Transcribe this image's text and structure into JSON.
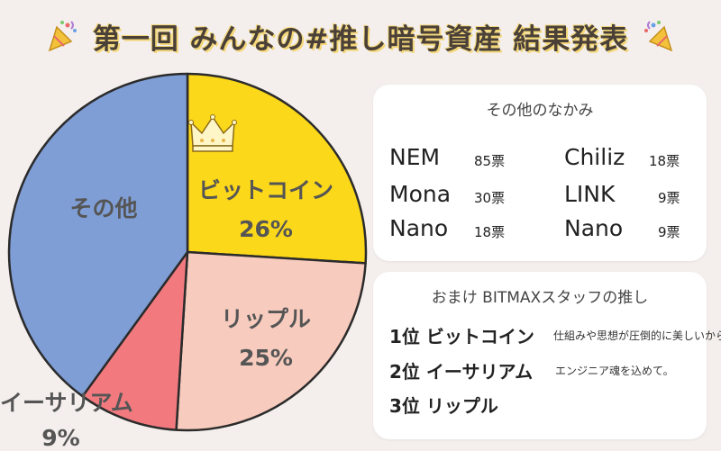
{
  "title": "第一回 みんなの#推し暗号資産 結果発表",
  "chart_data": {
    "type": "pie",
    "title": "第一回 みんなの#推し暗号資産 結果発表",
    "slices": [
      {
        "name": "ビットコイン",
        "value": 26,
        "label": "26%",
        "color": "#fcd81a"
      },
      {
        "name": "リップル",
        "value": 25,
        "label": "25%",
        "color": "#f7cbbd"
      },
      {
        "name": "イーサリアム",
        "value": 9,
        "label": "9%",
        "color": "#f27a7f"
      },
      {
        "name": "その他",
        "value": 40,
        "label": "",
        "color": "#7f9ed6"
      }
    ]
  },
  "others_panel": {
    "title": "その他のなかみ",
    "items": [
      {
        "name": "NEM",
        "votes": "85票"
      },
      {
        "name": "Mona",
        "votes": "30票"
      },
      {
        "name": "Nano",
        "votes": "18票"
      },
      {
        "name": "Chiliz",
        "votes": "18票"
      },
      {
        "name": "LINK",
        "votes": "9票"
      },
      {
        "name": "Nano",
        "votes": "9票"
      }
    ]
  },
  "staff_panel": {
    "title": "おまけ BITMAXスタッフの推し",
    "ranks": [
      {
        "rank": "1位 ビットコイン",
        "note": "仕組みや思想が圧倒的に美しいから"
      },
      {
        "rank": "2位 イーサリアム",
        "note": "エンジニア魂を込めて。"
      },
      {
        "rank": "3位 リップル",
        "note": ""
      }
    ]
  }
}
